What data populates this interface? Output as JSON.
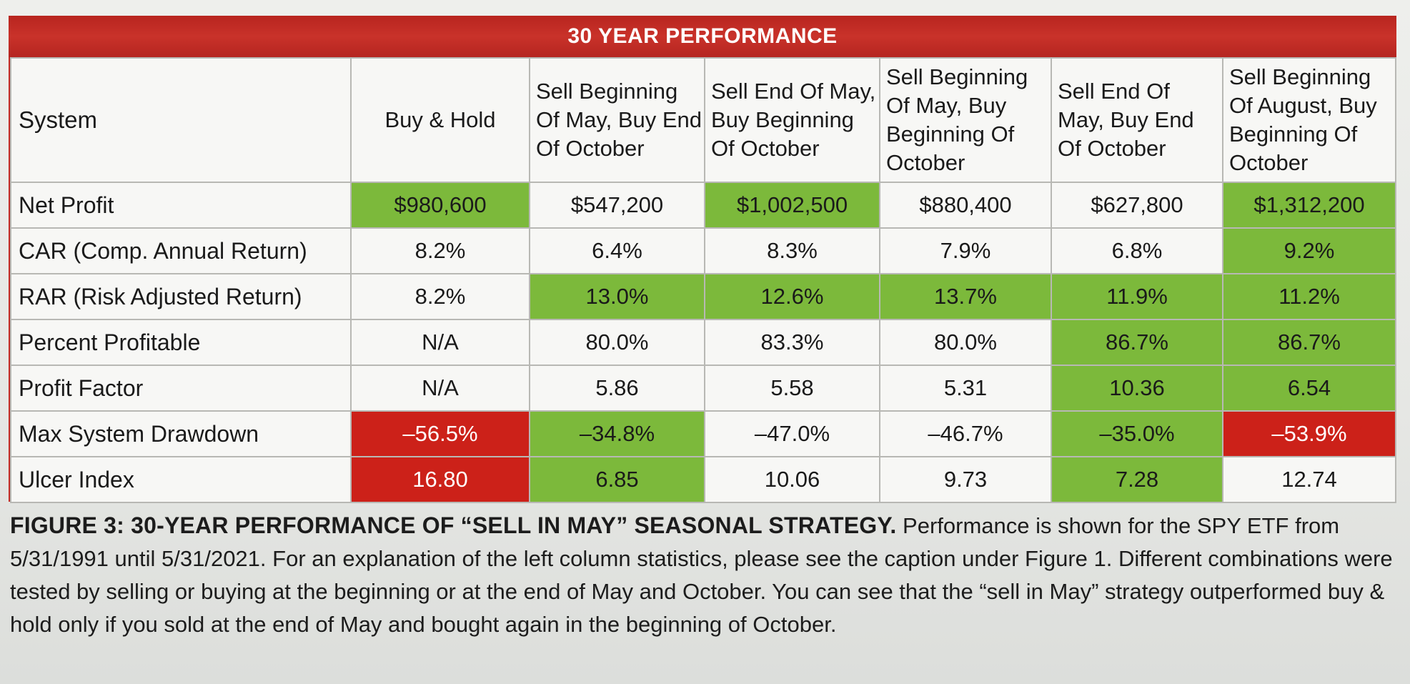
{
  "banner_title": "30 YEAR PERFORMANCE",
  "colors": {
    "banner": "#c22a24",
    "best": "#7cb93b",
    "worst": "#cc2119"
  },
  "header": {
    "system": "System",
    "columns": [
      "Buy & Hold",
      "Sell Beginning Of May, Buy End Of October",
      "Sell End Of May, Buy Beginning Of October",
      "Sell Beginning Of May, Buy Beginning Of October",
      "Sell End Of May, Buy End Of October",
      "Sell Beginning Of August, Buy Beginning Of October"
    ]
  },
  "rows": [
    {
      "label": "Net Profit",
      "values": [
        "$980,600",
        "$547,200",
        "$1,002,500",
        "$880,400",
        "$627,800",
        "$1,312,200"
      ],
      "highlight": [
        "green",
        "",
        "green",
        "",
        "",
        "green"
      ]
    },
    {
      "label": "CAR (Comp. Annual Return)",
      "values": [
        "8.2%",
        "6.4%",
        "8.3%",
        "7.9%",
        "6.8%",
        "9.2%"
      ],
      "highlight": [
        "",
        "",
        "",
        "",
        "",
        "green"
      ]
    },
    {
      "label": "RAR (Risk Adjusted Return)",
      "values": [
        "8.2%",
        "13.0%",
        "12.6%",
        "13.7%",
        "11.9%",
        "11.2%"
      ],
      "highlight": [
        "",
        "green",
        "green",
        "green",
        "green",
        "green"
      ]
    },
    {
      "label": "Percent Profitable",
      "values": [
        "N/A",
        "80.0%",
        "83.3%",
        "80.0%",
        "86.7%",
        "86.7%"
      ],
      "highlight": [
        "",
        "",
        "",
        "",
        "green",
        "green"
      ]
    },
    {
      "label": "Profit Factor",
      "values": [
        "N/A",
        "5.86",
        "5.58",
        "5.31",
        "10.36",
        "6.54"
      ],
      "highlight": [
        "",
        "",
        "",
        "",
        "green",
        "green"
      ]
    },
    {
      "label": "Max System Drawdown",
      "values": [
        "–56.5%",
        "–34.8%",
        "–47.0%",
        "–46.7%",
        "–35.0%",
        "–53.9%"
      ],
      "highlight": [
        "red",
        "green",
        "",
        "",
        "green",
        "red"
      ]
    },
    {
      "label": "Ulcer Index",
      "values": [
        "16.80",
        "6.85",
        "10.06",
        "9.73",
        "7.28",
        "12.74"
      ],
      "highlight": [
        "red",
        "green",
        "",
        "",
        "green",
        ""
      ]
    }
  ],
  "caption": {
    "label": "FIGURE 3: 30-YEAR PERFORMANCE OF “SELL IN MAY” SEASONAL STRATEGY.",
    "text": "Performance is shown for the SPY ETF from 5/31/1991 until 5/31/2021. For an explanation of the left column statistics, please see the caption under Figure 1. Different combinations were tested by selling or buying at the beginning or at the end of May and October. You can see that the “sell in May” strategy outperformed buy & hold only if you sold at the end of May and bought again in the beginning of October."
  }
}
